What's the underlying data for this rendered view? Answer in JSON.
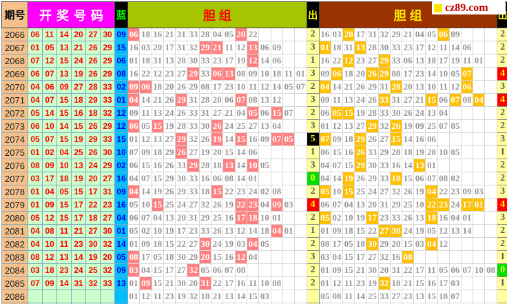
{
  "brand": {
    "logo_text": "cz89.com",
    "logo_square_color": "#FFE800",
    "logo_text_color": "#C00000"
  },
  "header": {
    "issue_label": "期号",
    "winning_label": "开奖号码",
    "blue_label": "蓝",
    "dan1_label": "胆组",
    "out1_label": "出",
    "dan2_label": "胆组",
    "out2_label": "出"
  },
  "colors": {
    "issue_bg": "#F4C18C",
    "winning_header_bg": "#FF00FF",
    "blue_header_text": "#00FF00",
    "red_ball_text": "#FF0000",
    "red_ball_bg": "#CCFFCC",
    "blue_ball_bg": "#00BFFF",
    "dan1_header_bg": "#A6C400",
    "dan2_header_bg": "#9A3300",
    "dan_hit_left_bg": "#FF8080",
    "dan_hit_right_bg": "#FFC000",
    "out_bg": "#FFFF9C",
    "out_zero_bg": "#00E000",
    "out_four_bg": "#FF0000",
    "out_five_bg": "#000000"
  },
  "chart_data": {
    "type": "table",
    "columns": [
      "期号",
      "开奖号码",
      "蓝",
      "胆组",
      "出",
      "胆组",
      "出"
    ],
    "dan_columns_per_group": 15,
    "rows": [
      {
        "issue": "2066",
        "reds": [
          "06",
          "11",
          "14",
          "20",
          "27",
          "30"
        ],
        "blue": "09",
        "dan1": [
          "06",
          "18",
          "16",
          "21",
          "31",
          "33",
          "28",
          "04",
          "05",
          "20",
          "22"
        ],
        "hl1": [
          0,
          9
        ],
        "out1": "2",
        "s1": "normal",
        "dan2": [
          "16",
          "03",
          "20",
          "17",
          "31",
          "32",
          "29",
          "21",
          "04",
          "05",
          "06",
          "09"
        ],
        "hl2": [
          2,
          10
        ],
        "out2": "2",
        "s2": "normal"
      },
      {
        "issue": "2067",
        "reds": [
          "01",
          "05",
          "13",
          "21",
          "26",
          "29"
        ],
        "blue": "15",
        "dan1": [
          "16",
          "03",
          "20",
          "17",
          "31",
          "32",
          "29",
          "21",
          "11",
          "12",
          "13",
          "06",
          "09"
        ],
        "hl1": [
          6,
          7,
          10
        ],
        "out1": "3",
        "s1": "normal",
        "dan2": [
          "01",
          "18",
          "31",
          "13",
          "28",
          "30",
          "33",
          "23",
          "17",
          "12",
          "11",
          "14",
          "06"
        ],
        "hl2": [
          0,
          3
        ],
        "out2": "2",
        "s2": "normal"
      },
      {
        "issue": "2068",
        "reds": [
          "07",
          "12",
          "15",
          "24",
          "26",
          "29"
        ],
        "blue": "06",
        "dan1": [
          "01",
          "18",
          "31",
          "13",
          "28",
          "30",
          "33",
          "23",
          "17",
          "19",
          "12",
          "14",
          "06"
        ],
        "hl1": [
          10
        ],
        "out1": "1",
        "s1": "normal",
        "dan2": [
          "16",
          "22",
          "12",
          "23",
          "27",
          "29",
          "33",
          "06",
          "13",
          "18",
          "17",
          "19",
          "11",
          "01"
        ],
        "hl2": [
          2,
          5
        ],
        "out2": "2",
        "s2": "normal"
      },
      {
        "issue": "2069",
        "reds": [
          "06",
          "07",
          "13",
          "19",
          "26",
          "29"
        ],
        "blue": "08",
        "dan1": [
          "16",
          "22",
          "12",
          "23",
          "27",
          "29",
          "33",
          "06",
          "13",
          "08",
          "09",
          "10",
          "18",
          "11",
          "01"
        ],
        "hl1": [
          5,
          7,
          8
        ],
        "out1": "3",
        "s1": "normal",
        "dan2": [
          "09",
          "06",
          "18",
          "20",
          "26",
          "29",
          "08",
          "17",
          "23",
          "14",
          "10",
          "05",
          "07"
        ],
        "hl2": [
          1,
          4,
          5,
          12
        ],
        "out2": "4",
        "s2": "red"
      },
      {
        "issue": "2070",
        "reds": [
          "04",
          "06",
          "09",
          "27",
          "28",
          "33"
        ],
        "blue": "02",
        "dan1": [
          "09",
          "06",
          "18",
          "20",
          "26",
          "29",
          "08",
          "17",
          "23",
          "10",
          "11",
          "12",
          "14",
          "05",
          "07"
        ],
        "hl1": [
          0,
          1
        ],
        "out1": "2",
        "s1": "normal",
        "dan2": [
          "04",
          "14",
          "21",
          "26",
          "29",
          "31",
          "28",
          "20",
          "13",
          "10",
          "11",
          "12",
          "06"
        ],
        "hl2": [
          0,
          6,
          12
        ],
        "out2": "3",
        "s2": "normal"
      },
      {
        "issue": "2071",
        "reds": [
          "04",
          "07",
          "15",
          "18",
          "29",
          "33"
        ],
        "blue": "01",
        "dan1": [
          "04",
          "14",
          "21",
          "26",
          "29",
          "31",
          "28",
          "20",
          "06",
          "07",
          "08",
          "13",
          "12"
        ],
        "hl1": [
          0,
          4,
          9
        ],
        "out1": "3",
        "s1": "normal",
        "dan2": [
          "09",
          "11",
          "13",
          "24",
          "26",
          "33",
          "31",
          "27",
          "21",
          "15",
          "06",
          "07",
          "08",
          "04"
        ],
        "hl2": [
          5,
          9,
          11,
          13
        ],
        "out2": "4",
        "s2": "red"
      },
      {
        "issue": "2072",
        "reds": [
          "05",
          "14",
          "15",
          "16",
          "18",
          "32"
        ],
        "blue": "12",
        "dan1": [
          "09",
          "11",
          "13",
          "24",
          "26",
          "33",
          "31",
          "27",
          "21",
          "04",
          "05",
          "06",
          "15",
          "07"
        ],
        "hl1": [
          10,
          12
        ],
        "out1": "2",
        "s1": "normal",
        "dan2": [
          "06",
          "05",
          "15",
          "19",
          "28",
          "33",
          "30",
          "26",
          "24",
          "13",
          "04"
        ],
        "hl2": [
          1,
          2
        ],
        "out2": "2",
        "s2": "normal"
      },
      {
        "issue": "2073",
        "reds": [
          "06",
          "10",
          "14",
          "15",
          "26",
          "29"
        ],
        "blue": "12",
        "dan1": [
          "06",
          "05",
          "15",
          "19",
          "28",
          "33",
          "30",
          "26",
          "24",
          "25",
          "27",
          "13",
          "04"
        ],
        "hl1": [
          0,
          2,
          7
        ],
        "out1": "3",
        "s1": "normal",
        "dan2": [
          "01",
          "12",
          "13",
          "27",
          "29",
          "32",
          "26",
          "19",
          "09",
          "25",
          "07",
          "05"
        ],
        "hl2": [
          4,
          6
        ],
        "out2": "2",
        "s2": "normal"
      },
      {
        "issue": "2074",
        "reds": [
          "05",
          "07",
          "15",
          "19",
          "29",
          "33"
        ],
        "blue": "15",
        "dan1": [
          "01",
          "12",
          "13",
          "27",
          "29",
          "32",
          "26",
          "19",
          "14",
          "15",
          "16",
          "09",
          "07",
          "05"
        ],
        "hl1": [
          4,
          7,
          9,
          12,
          13
        ],
        "out1": "5",
        "s1": "black",
        "dan2": [
          "07",
          "09",
          "18",
          "29",
          "26",
          "27",
          "15",
          "14",
          "16",
          "06"
        ],
        "hl2": [
          0,
          3,
          6
        ],
        "out2": "3",
        "s2": "normal"
      },
      {
        "issue": "2075",
        "reds": [
          "01",
          "02",
          "04",
          "25",
          "26",
          "30"
        ],
        "blue": "10",
        "dan1": [
          "07",
          "09",
          "18",
          "29",
          "26",
          "27",
          "19",
          "20",
          "15",
          "14",
          "06"
        ],
        "hl1": [
          4
        ],
        "out1": "1",
        "s1": "normal",
        "dan2": [
          "06",
          "15",
          "16",
          "26",
          "33",
          "29",
          "28",
          "18",
          "19",
          "20",
          "10",
          "05"
        ],
        "hl2": [
          3
        ],
        "out2": "1",
        "s2": "normal"
      },
      {
        "issue": "2076",
        "reds": [
          "08",
          "09",
          "10",
          "13",
          "24",
          "29"
        ],
        "blue": "02",
        "dan1": [
          "06",
          "15",
          "16",
          "26",
          "33",
          "29",
          "28",
          "18",
          "13",
          "14",
          "10",
          "05"
        ],
        "hl1": [
          5,
          8,
          10
        ],
        "out1": "3",
        "s1": "normal",
        "dan2": [
          "04",
          "07",
          "15",
          "29",
          "30",
          "33",
          "16",
          "14",
          "13",
          "01"
        ],
        "hl2": [
          3,
          8
        ],
        "out2": "2",
        "s2": "normal"
      },
      {
        "issue": "2077",
        "reds": [
          "03",
          "17",
          "18",
          "19",
          "20",
          "27"
        ],
        "blue": "16",
        "dan1": [
          "04",
          "07",
          "15",
          "29",
          "30",
          "33",
          "16",
          "06",
          "08",
          "14",
          "01"
        ],
        "hl1": [],
        "out1": "0",
        "s1": "green",
        "dan2": [
          "04",
          "14",
          "19",
          "26",
          "29",
          "33",
          "18",
          "15",
          "06",
          "07",
          "08",
          "02"
        ],
        "hl2": [
          2,
          6
        ],
        "out2": "2",
        "s2": "normal"
      },
      {
        "issue": "2078",
        "reds": [
          "01",
          "04",
          "05",
          "15",
          "17",
          "31"
        ],
        "blue": "09",
        "dan1": [
          "04",
          "14",
          "19",
          "26",
          "29",
          "33",
          "18",
          "15",
          "22",
          "23",
          "24",
          "02",
          "08"
        ],
        "hl1": [
          0,
          7
        ],
        "out1": "2",
        "s1": "normal",
        "dan2": [
          "05",
          "10",
          "15",
          "25",
          "24",
          "27",
          "32",
          "26",
          "19",
          "04",
          "22",
          "23",
          "09",
          "03"
        ],
        "hl2": [
          0,
          2,
          9
        ],
        "out2": "3",
        "s2": "normal"
      },
      {
        "issue": "2079",
        "reds": [
          "01",
          "09",
          "15",
          "17",
          "22",
          "23"
        ],
        "blue": "16",
        "dan1": [
          "05",
          "10",
          "15",
          "25",
          "24",
          "27",
          "32",
          "26",
          "19",
          "22",
          "23",
          "04",
          "09",
          "03"
        ],
        "hl1": [
          2,
          9,
          10,
          12
        ],
        "out1": "4",
        "s1": "red",
        "dan2": [
          "06",
          "07",
          "04",
          "13",
          "20",
          "31",
          "29",
          "25",
          "10",
          "22",
          "23",
          "24",
          "17",
          "01"
        ],
        "hl2": [
          9,
          10,
          12,
          13
        ],
        "out2": "4",
        "s2": "red"
      },
      {
        "issue": "2080",
        "reds": [
          "05",
          "12",
          "15",
          "17",
          "18",
          "27"
        ],
        "blue": "04",
        "dan1": [
          "06",
          "07",
          "04",
          "13",
          "20",
          "31",
          "29",
          "25",
          "16",
          "17",
          "18",
          "10",
          "01"
        ],
        "hl1": [
          9,
          10
        ],
        "out1": "2",
        "s1": "normal",
        "dan2": [
          "05",
          "02",
          "10",
          "19",
          "17",
          "23",
          "33",
          "26",
          "13",
          "18",
          "16",
          "04",
          "01"
        ],
        "hl2": [
          0,
          4,
          9
        ],
        "out2": "3",
        "s2": "normal"
      },
      {
        "issue": "2081",
        "reds": [
          "04",
          "08",
          "11",
          "21",
          "27",
          "30"
        ],
        "blue": "01",
        "dan1": [
          "05",
          "02",
          "10",
          "19",
          "17",
          "23",
          "33",
          "26",
          "13",
          "12",
          "14",
          "18",
          "04",
          "01"
        ],
        "hl1": [
          12
        ],
        "out1": "1",
        "s1": "normal",
        "dan2": [
          "01",
          "09",
          "18",
          "15",
          "22",
          "27",
          "30",
          "24",
          "19",
          "05",
          "12",
          "13",
          "14"
        ],
        "hl2": [
          5,
          6
        ],
        "out2": "2",
        "s2": "normal"
      },
      {
        "issue": "2082",
        "reds": [
          "04",
          "10",
          "11",
          "23",
          "30",
          "32"
        ],
        "blue": "14",
        "dan1": [
          "01",
          "09",
          "18",
          "15",
          "22",
          "27",
          "30",
          "24",
          "19",
          "03",
          "04",
          "05"
        ],
        "hl1": [
          6,
          10
        ],
        "out1": "2",
        "s1": "normal",
        "dan2": [
          "08",
          "17",
          "05",
          "18",
          "30",
          "29",
          "20",
          "15",
          "03",
          "04",
          "12"
        ],
        "hl2": [
          4,
          9
        ],
        "out2": "2",
        "s2": "normal"
      },
      {
        "issue": "2083",
        "reds": [
          "08",
          "12",
          "13",
          "14",
          "19",
          "20"
        ],
        "blue": "05",
        "dan1": [
          "08",
          "17",
          "05",
          "18",
          "30",
          "29",
          "20",
          "15",
          "16",
          "12",
          "04"
        ],
        "hl1": [
          0,
          6,
          9
        ],
        "out1": "3",
        "s1": "normal",
        "dan2": [
          "03",
          "04",
          "15",
          "17",
          "27",
          "32",
          "16",
          "08"
        ],
        "hl2": [
          7
        ],
        "out2": "1",
        "s2": "normal"
      },
      {
        "issue": "2084",
        "reds": [
          "03",
          "18",
          "23",
          "24",
          "25",
          "32"
        ],
        "blue": "09",
        "dan1": [
          "03",
          "04",
          "15",
          "17",
          "27",
          "32",
          "05",
          "06",
          "07",
          "08"
        ],
        "hl1": [
          0,
          5
        ],
        "out1": "2",
        "s1": "normal",
        "dan2": [
          "01",
          "09",
          "15",
          "21",
          "30",
          "20",
          "31",
          "22",
          "17",
          "11",
          "05",
          "06",
          "07",
          "10",
          "08"
        ],
        "hl2": [],
        "out2": "0",
        "s2": "green"
      },
      {
        "issue": "2085",
        "reds": [
          "07",
          "09",
          "14",
          "31",
          "32",
          "33"
        ],
        "blue": "13",
        "dan1": [
          "01",
          "09",
          "15",
          "21",
          "30",
          "20",
          "31",
          "22",
          "17",
          "16",
          "11",
          "10",
          "08"
        ],
        "hl1": [
          1,
          6
        ],
        "out1": "2",
        "s1": "normal",
        "dan2": [
          "01",
          "12",
          "11",
          "23",
          "19",
          "32",
          "18",
          "21",
          "15",
          "16",
          "17",
          "03"
        ],
        "hl2": [
          5
        ],
        "out2": "1",
        "s2": "normal"
      },
      {
        "issue": "2086",
        "reds": [
          "",
          "",
          "",
          "",
          "",
          ""
        ],
        "blue": "",
        "dan1": [
          "01",
          "12",
          "11",
          "23",
          "19",
          "32",
          "18",
          "21",
          "13",
          "14",
          "15",
          "03"
        ],
        "hl1": [],
        "out1": "",
        "s1": "normal",
        "dan2": [
          "05",
          "08",
          "11",
          "14",
          "25",
          "33",
          "27",
          "23",
          "13",
          "15",
          "18",
          "07"
        ],
        "hl2": [],
        "out2": "",
        "s2": "normal"
      }
    ]
  }
}
